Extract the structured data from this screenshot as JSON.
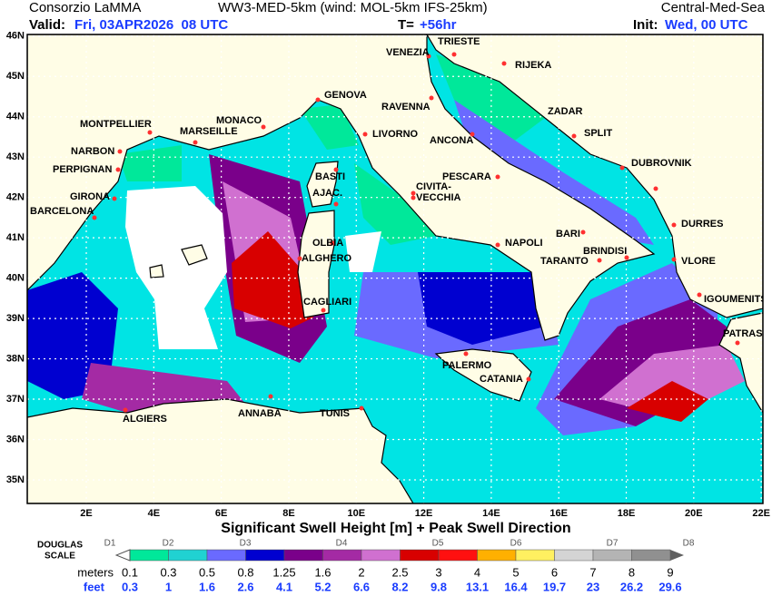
{
  "header": {
    "left1": "Consorzio LaMMA",
    "center1": "WW3-MED-5km (wind: MOL-5km IFS-25km)",
    "right1": "Central-Med-Sea",
    "valid_label": "Valid:",
    "valid_value": "Fri, 03APR2026  08 UTC",
    "lead_label": "T=",
    "lead_value": "+56hr",
    "init_label": "Init:",
    "init_value": "Wed, 00 UTC"
  },
  "map": {
    "lon_range": [
      0.25,
      22.05
    ],
    "lat_range": [
      34.415,
      46.04
    ],
    "lon_ticks": [
      {
        "value": 2,
        "label": "2E"
      },
      {
        "value": 4,
        "label": "4E"
      },
      {
        "value": 6,
        "label": "6E"
      },
      {
        "value": 8,
        "label": "8E"
      },
      {
        "value": 10,
        "label": "10E"
      },
      {
        "value": 12,
        "label": "12E"
      },
      {
        "value": 14,
        "label": "14E"
      },
      {
        "value": 16,
        "label": "16E"
      },
      {
        "value": 18,
        "label": "18E"
      },
      {
        "value": 20,
        "label": "20E"
      },
      {
        "value": 22,
        "label": "22E"
      }
    ],
    "lat_ticks": [
      {
        "value": 46,
        "label": "46N"
      },
      {
        "value": 45,
        "label": "45N"
      },
      {
        "value": 44,
        "label": "44N"
      },
      {
        "value": 43,
        "label": "43N"
      },
      {
        "value": 42,
        "label": "42N"
      },
      {
        "value": 41,
        "label": "41N"
      },
      {
        "value": 40,
        "label": "40N"
      },
      {
        "value": 39,
        "label": "39N"
      },
      {
        "value": 38,
        "label": "38N"
      },
      {
        "value": 37,
        "label": "37N"
      },
      {
        "value": 36,
        "label": "36N"
      },
      {
        "value": 35,
        "label": "35N"
      }
    ],
    "cities": [
      "TRIESTE",
      "VENEZIA",
      "RIJEKA",
      "GENOVA",
      "RAVENNA",
      "ZADAR",
      "MONTPELLIER",
      "MONACO",
      "MARSEILLE",
      "LIVORNO",
      "ANCONA",
      "SPLIT",
      "NARBON",
      "PERPIGNAN",
      "DUBROVNIK",
      "BASTI",
      "PESCARA",
      "CIVITA-",
      "VECCHIA",
      "AJAC.",
      "GIRONA",
      "BARCELONA",
      "DURRES",
      "OLBIA",
      "BARI",
      "NAPOLI",
      "ALGHERO",
      "BRINDISI",
      "TARANTO",
      "VLORE",
      "IGOUMENITSA",
      "CAGLIARI",
      "PATRAS",
      "PALERMO",
      "CATANIA",
      "ALGIERS",
      "ANNABA",
      "TUNIS"
    ]
  },
  "legend": {
    "title": "Significant Swell Height [m] + Peak Swell Direction",
    "scale_label": [
      "DOUGLAS",
      "SCALE"
    ],
    "douglas": [
      "D1",
      "D2",
      "D3",
      "D4",
      "D5",
      "D6",
      "D7",
      "D8"
    ],
    "meters_label": "meters",
    "feet_label": "feet",
    "meters": [
      0.1,
      0.3,
      0.5,
      0.8,
      1.25,
      1.6,
      2,
      2.5,
      3,
      4,
      5,
      6,
      7,
      8,
      9
    ],
    "feet": [
      0.3,
      1,
      1.6,
      2.6,
      4.1,
      5.2,
      6.6,
      8.2,
      9.8,
      13.1,
      16.4,
      19.7,
      23,
      26.2,
      29.6
    ],
    "colors": [
      "#00e89a",
      "#20d2d2",
      "#6a6aff",
      "#0000d0",
      "#7a008a",
      "#a42aa4",
      "#d070d0",
      "#d80000",
      "#ff1010",
      "#ffb000",
      "#fff060",
      "#d4d4d4",
      "#b4b4b4",
      "#909090"
    ],
    "arrow_color": "#606060"
  }
}
